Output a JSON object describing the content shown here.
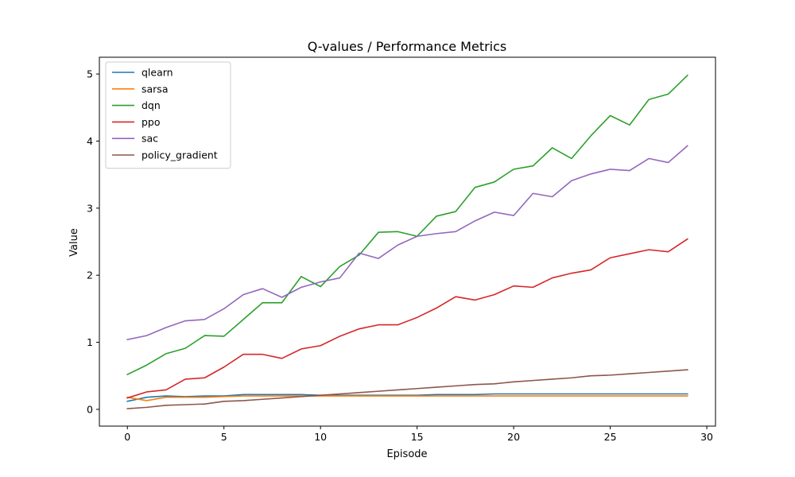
{
  "chart_data": {
    "type": "line",
    "title": "Q-values / Performance Metrics",
    "xlabel": "Episode",
    "ylabel": "Value",
    "xlim": [
      -1.45,
      30.45
    ],
    "ylim": [
      -0.25,
      5.25
    ],
    "xticks": [
      0,
      5,
      10,
      15,
      20,
      25,
      30
    ],
    "yticks": [
      0,
      1,
      2,
      3,
      4,
      5
    ],
    "grid": false,
    "legend_position": "top-left",
    "x": [
      0,
      1,
      2,
      3,
      4,
      5,
      6,
      7,
      8,
      9,
      10,
      11,
      12,
      13,
      14,
      15,
      16,
      17,
      18,
      19,
      20,
      21,
      22,
      23,
      24,
      25,
      26,
      27,
      28,
      29
    ],
    "series": [
      {
        "name": "qlearn",
        "color": "#1f77b4",
        "values": [
          0.12,
          0.18,
          0.2,
          0.19,
          0.2,
          0.2,
          0.22,
          0.22,
          0.22,
          0.22,
          0.21,
          0.21,
          0.21,
          0.21,
          0.21,
          0.21,
          0.22,
          0.22,
          0.22,
          0.23,
          0.23,
          0.23,
          0.23,
          0.23,
          0.23,
          0.23,
          0.23,
          0.23,
          0.23,
          0.23
        ]
      },
      {
        "name": "sarsa",
        "color": "#ff7f0e",
        "values": [
          0.18,
          0.13,
          0.18,
          0.18,
          0.18,
          0.19,
          0.2,
          0.2,
          0.2,
          0.2,
          0.2,
          0.2,
          0.2,
          0.2,
          0.2,
          0.2,
          0.2,
          0.2,
          0.2,
          0.2,
          0.2,
          0.2,
          0.2,
          0.2,
          0.2,
          0.2,
          0.2,
          0.2,
          0.2,
          0.2
        ]
      },
      {
        "name": "dqn",
        "color": "#2ca02c",
        "values": [
          0.52,
          0.66,
          0.83,
          0.91,
          1.1,
          1.09,
          1.34,
          1.59,
          1.59,
          1.98,
          1.83,
          2.13,
          2.3,
          2.64,
          2.65,
          2.58,
          2.88,
          2.95,
          3.31,
          3.39,
          3.58,
          3.63,
          3.9,
          3.74,
          4.08,
          4.38,
          4.24,
          4.62,
          4.7,
          4.98
        ]
      },
      {
        "name": "ppo",
        "color": "#d62728",
        "values": [
          0.17,
          0.26,
          0.29,
          0.45,
          0.47,
          0.63,
          0.82,
          0.82,
          0.76,
          0.9,
          0.95,
          1.09,
          1.2,
          1.26,
          1.26,
          1.37,
          1.51,
          1.68,
          1.63,
          1.71,
          1.84,
          1.82,
          1.96,
          2.03,
          2.08,
          2.26,
          2.32,
          2.38,
          2.35,
          2.54
        ]
      },
      {
        "name": "sac",
        "color": "#9467bd",
        "values": [
          1.04,
          1.1,
          1.22,
          1.32,
          1.34,
          1.5,
          1.71,
          1.8,
          1.67,
          1.82,
          1.9,
          1.96,
          2.33,
          2.25,
          2.45,
          2.58,
          2.62,
          2.65,
          2.81,
          2.94,
          2.89,
          3.22,
          3.17,
          3.41,
          3.51,
          3.58,
          3.56,
          3.74,
          3.68,
          3.93
        ]
      },
      {
        "name": "policy_gradient",
        "color": "#8c564b",
        "values": [
          0.01,
          0.03,
          0.06,
          0.07,
          0.08,
          0.12,
          0.13,
          0.15,
          0.17,
          0.19,
          0.21,
          0.23,
          0.25,
          0.27,
          0.29,
          0.31,
          0.33,
          0.35,
          0.37,
          0.38,
          0.41,
          0.43,
          0.45,
          0.47,
          0.5,
          0.51,
          0.53,
          0.55,
          0.57,
          0.59
        ]
      }
    ]
  }
}
